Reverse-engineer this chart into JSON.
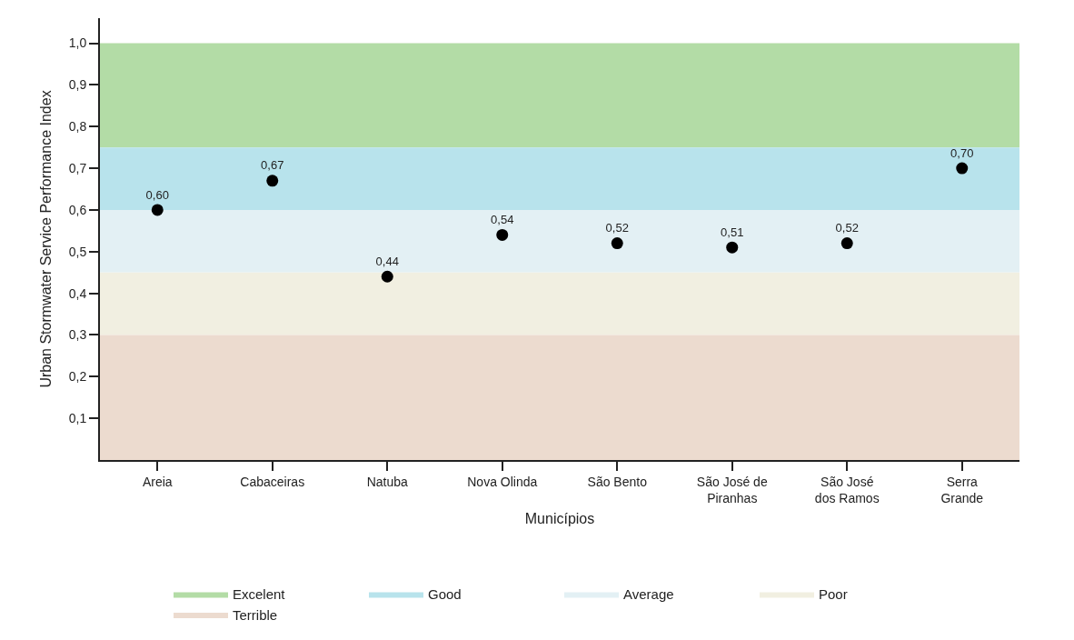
{
  "chart_data": {
    "type": "scatter",
    "xlabel": "Municípios",
    "ylabel": "Urban Stormwater Service Performance Index",
    "categories": [
      "Areia",
      "Cabaceiras",
      "Natuba",
      "Nova Olinda",
      "São Bento",
      "São José de Piranhas",
      "São José dos Ramos",
      "Serra Grande"
    ],
    "series": [
      {
        "color": "#000000",
        "values": [
          0.6,
          0.67,
          0.44,
          0.54,
          0.52,
          0.51,
          0.52,
          0.7
        ],
        "value_labels": [
          "0,60",
          "0,67",
          "0,44",
          "0,54",
          "0,52",
          "0,51",
          "0,52",
          "0,70"
        ]
      }
    ],
    "ylim": [
      0,
      1.06
    ],
    "yticks": [
      {
        "value": 0.1,
        "label": "0,1"
      },
      {
        "value": 0.2,
        "label": "0,2"
      },
      {
        "value": 0.3,
        "label": "0,3"
      },
      {
        "value": 0.4,
        "label": "0,4"
      },
      {
        "value": 0.5,
        "label": "0,5"
      },
      {
        "value": 0.6,
        "label": "0,6"
      },
      {
        "value": 0.7,
        "label": "0,7"
      },
      {
        "value": 0.8,
        "label": "0,8"
      },
      {
        "value": 0.9,
        "label": "0,9"
      },
      {
        "value": 1.0,
        "label": "1,0"
      }
    ],
    "bands": [
      {
        "axis": "y",
        "from": 0.75,
        "to": 1.0,
        "label": "Excelent",
        "color": "#b3dca6"
      },
      {
        "axis": "y",
        "from": 0.6,
        "to": 0.75,
        "label": "Good",
        "color": "#b8e3ec"
      },
      {
        "axis": "y",
        "from": 0.45,
        "to": 0.6,
        "label": "Average",
        "color": "#e3f0f4"
      },
      {
        "axis": "y",
        "from": 0.3,
        "to": 0.45,
        "label": "Poor",
        "color": "#f1efe1"
      },
      {
        "axis": "y",
        "from": 0.0,
        "to": 0.3,
        "label": "Terrible",
        "color": "#ecdbcf"
      }
    ],
    "marker": "circle",
    "legend": "bottom"
  }
}
